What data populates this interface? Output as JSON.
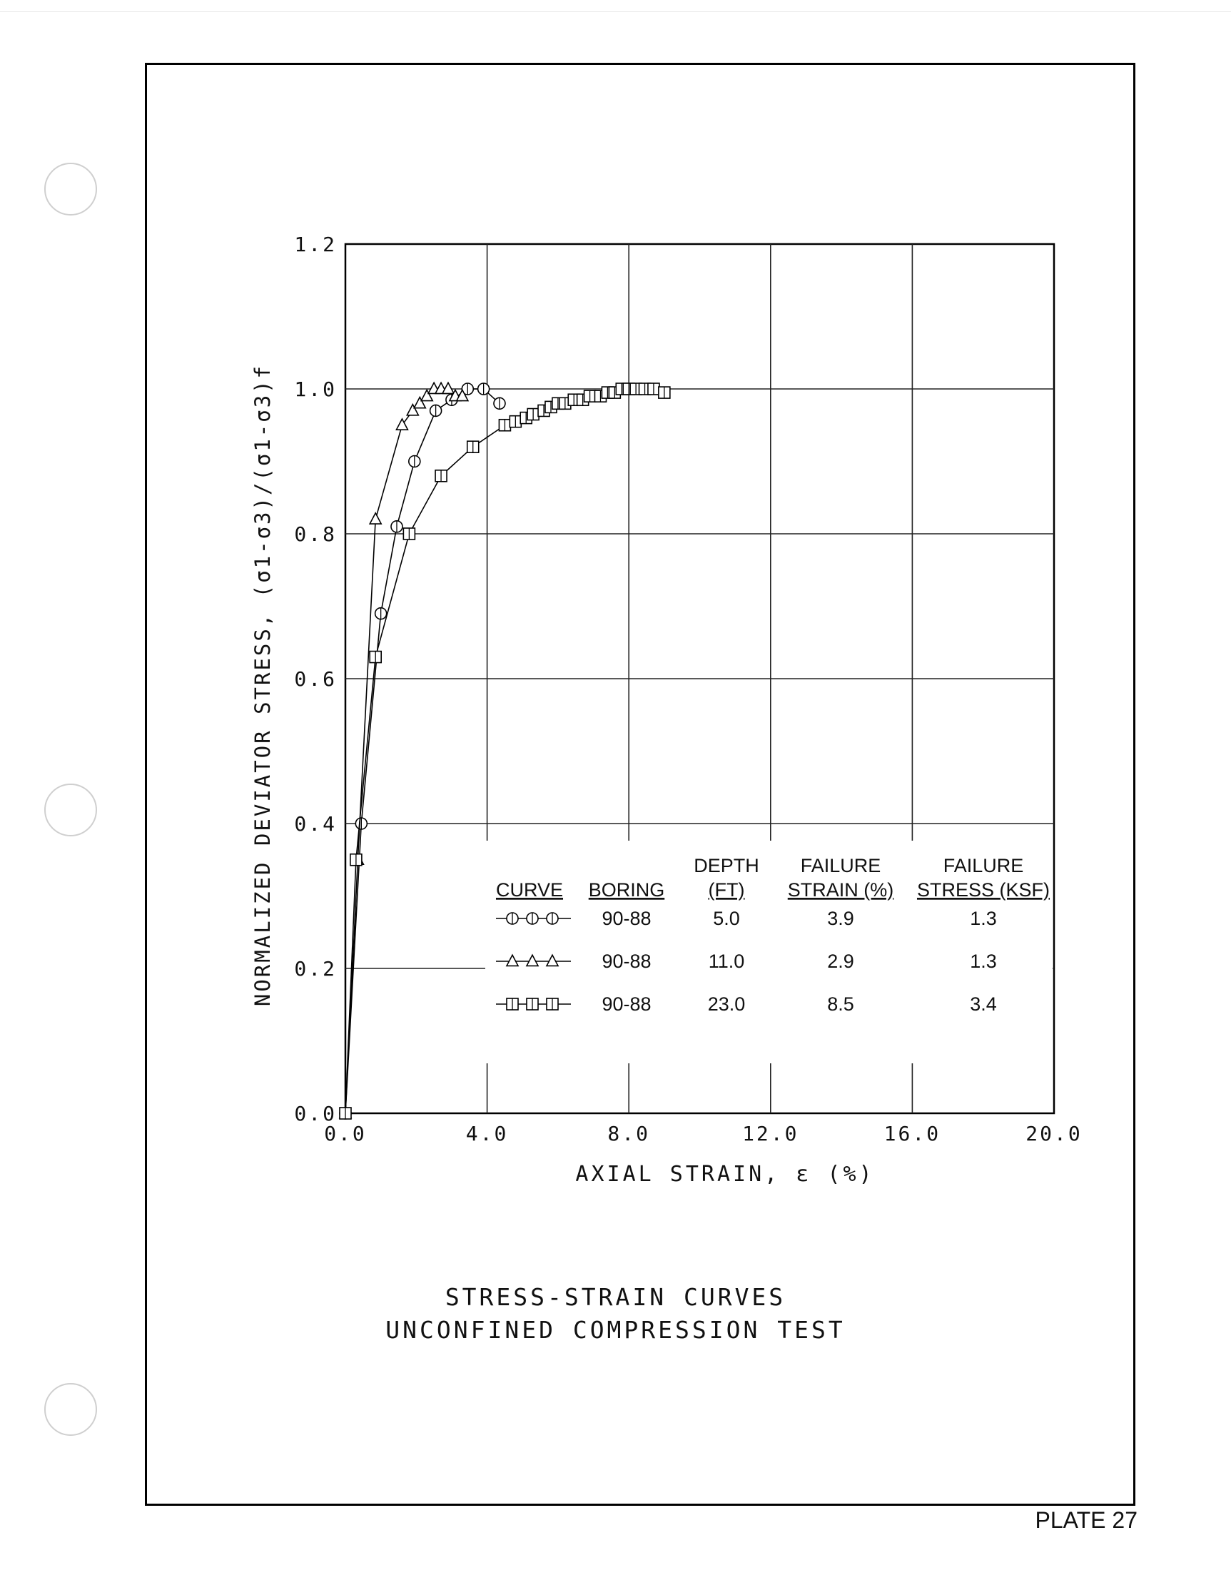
{
  "chart_data": {
    "type": "scatter",
    "title": "STRESS-STRAIN CURVES",
    "subtitle": "UNCONFINED COMPRESSION TEST",
    "xlabel": "AXIAL STRAIN, ε (%)",
    "ylabel": "NORMALIZED DEVIATOR STRESS, (σ1-σ3)/(σ1-σ3)f",
    "xlim": [
      0,
      20
    ],
    "ylim": [
      0,
      1.2
    ],
    "x_ticks": [
      "0.0",
      "4.0",
      "8.0",
      "12.0",
      "16.0",
      "20.0"
    ],
    "y_ticks": [
      "0.0",
      "0.2",
      "0.4",
      "0.6",
      "0.8",
      "1.0",
      "1.2"
    ],
    "grid": true,
    "series": [
      {
        "marker": "circle",
        "points": [
          [
            0,
            0
          ],
          [
            0.45,
            0.4
          ],
          [
            1.0,
            0.69
          ],
          [
            1.45,
            0.81
          ],
          [
            1.95,
            0.9
          ],
          [
            2.55,
            0.97
          ],
          [
            3.0,
            0.985
          ],
          [
            3.45,
            1.0
          ],
          [
            3.9,
            1.0
          ],
          [
            4.35,
            0.98
          ]
        ]
      },
      {
        "marker": "triangle",
        "points": [
          [
            0,
            0
          ],
          [
            0.35,
            0.35
          ],
          [
            0.85,
            0.82
          ],
          [
            1.6,
            0.95
          ],
          [
            1.9,
            0.97
          ],
          [
            2.1,
            0.98
          ],
          [
            2.3,
            0.99
          ],
          [
            2.5,
            1.0
          ],
          [
            2.7,
            1.0
          ],
          [
            2.9,
            1.0
          ],
          [
            3.1,
            0.99
          ],
          [
            3.3,
            0.99
          ]
        ]
      },
      {
        "marker": "square",
        "points": [
          [
            0,
            0
          ],
          [
            0.3,
            0.35
          ],
          [
            0.85,
            0.63
          ],
          [
            1.8,
            0.8
          ],
          [
            2.7,
            0.88
          ],
          [
            3.6,
            0.92
          ],
          [
            4.5,
            0.95
          ],
          [
            4.8,
            0.955
          ],
          [
            5.1,
            0.96
          ],
          [
            5.3,
            0.965
          ],
          [
            5.6,
            0.97
          ],
          [
            5.8,
            0.975
          ],
          [
            6.0,
            0.98
          ],
          [
            6.2,
            0.98
          ],
          [
            6.45,
            0.985
          ],
          [
            6.7,
            0.985
          ],
          [
            6.9,
            0.99
          ],
          [
            7.2,
            0.99
          ],
          [
            7.4,
            0.995
          ],
          [
            7.6,
            0.995
          ],
          [
            7.8,
            1.0
          ],
          [
            8.0,
            1.0
          ],
          [
            8.2,
            1.0
          ],
          [
            8.45,
            1.0
          ],
          [
            8.7,
            1.0
          ],
          [
            9.0,
            0.995
          ]
        ]
      }
    ],
    "legend": {
      "placement": "bottom-right",
      "headers": [
        {
          "line1": "",
          "line2": "CURVE"
        },
        {
          "line1": "",
          "line2": "BORING"
        },
        {
          "line1": "DEPTH",
          "line2": "(FT)"
        },
        {
          "line1": "FAILURE",
          "line2": "STRAIN (%)"
        },
        {
          "line1": "FAILURE",
          "line2": "STRESS (KSF)"
        }
      ],
      "rows": [
        {
          "marker": "circle",
          "boring": "90-88",
          "depth": "5.0",
          "failure_strain": "3.9",
          "failure_stress": "1.3"
        },
        {
          "marker": "triangle",
          "boring": "90-88",
          "depth": "11.0",
          "failure_strain": "2.9",
          "failure_stress": "1.3"
        },
        {
          "marker": "square",
          "boring": "90-88",
          "depth": "23.0",
          "failure_strain": "8.5",
          "failure_stress": "3.4"
        }
      ]
    }
  },
  "footer": {
    "title_line1": "STRESS-STRAIN CURVES",
    "title_line2": "UNCONFINED COMPRESSION TEST",
    "plate": "PLATE 27"
  }
}
